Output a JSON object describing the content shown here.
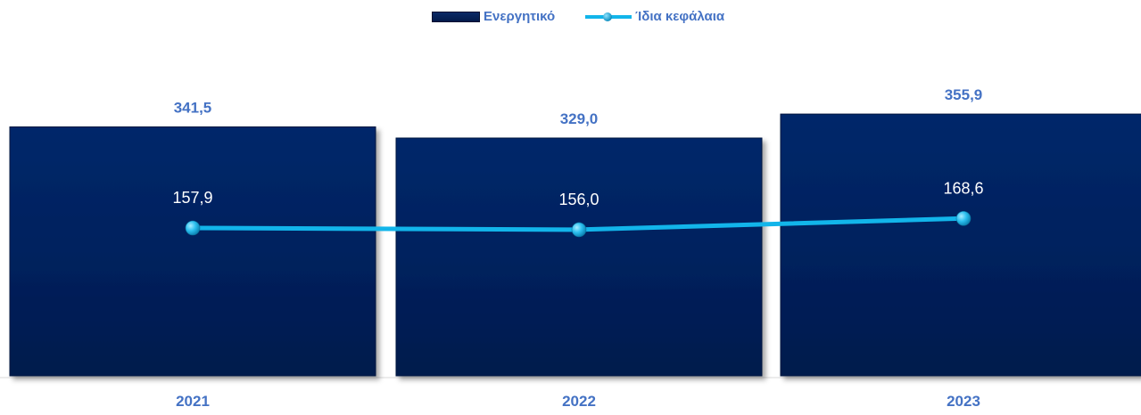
{
  "chart_data": {
    "type": "bar",
    "categories": [
      "2021",
      "2022",
      "2023"
    ],
    "series": [
      {
        "name": "Ενεργητικό",
        "kind": "bar",
        "values": [
          341.5,
          329.0,
          355.9
        ],
        "labels": [
          "341,5",
          "329,0",
          "355,9"
        ]
      },
      {
        "name": "Ίδια κεφάλαια",
        "kind": "line",
        "values": [
          157.9,
          156.0,
          168.6
        ],
        "labels": [
          "157,9",
          "156,0",
          "168,6"
        ]
      }
    ],
    "grid": false,
    "legend_position": "top",
    "colors": {
      "bar": "#03215e",
      "bar_dark": "#021540",
      "line": "#12b5ea",
      "bar_label": "#4472c4",
      "line_label": "#333333",
      "axis_label": "#4472c4"
    }
  }
}
